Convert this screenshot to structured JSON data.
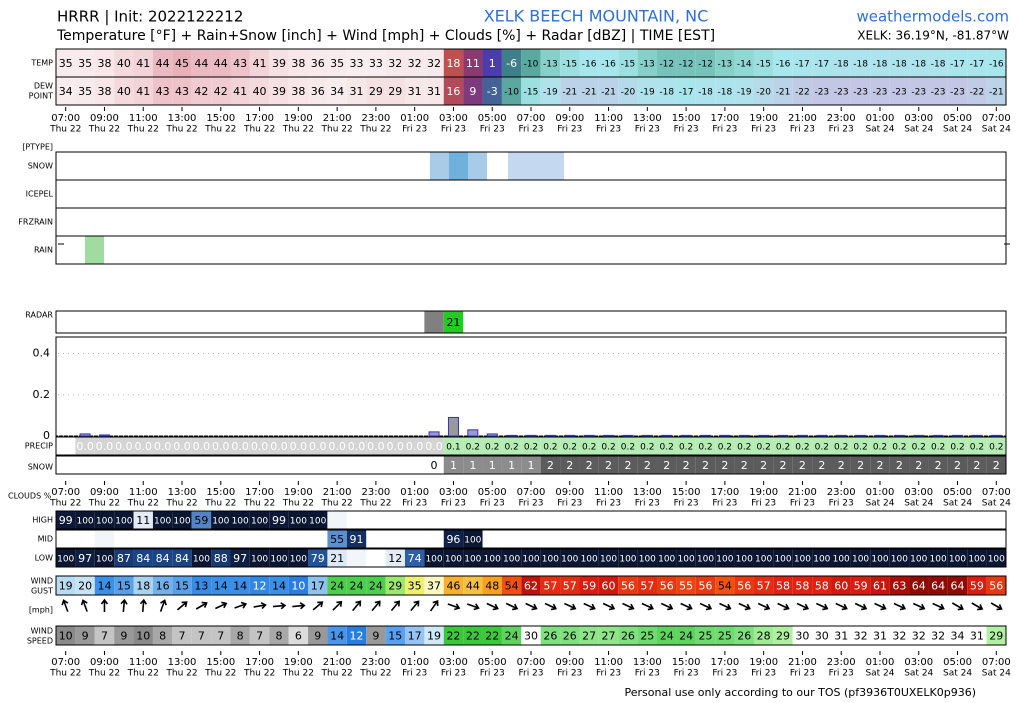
{
  "header": {
    "title": "HRRR | Init: 2022122212",
    "station": "XELK BEECH MOUNTAIN, NC",
    "site": "weathermodels.com",
    "subtitle": "Temperature [°F] + Rain+Snow [inch] + Wind [mph] + Clouds [%] + Radar [dBZ] | TIME [EST]",
    "location": "XELK: 36.19°N, -81.87°W"
  },
  "times": [
    "07:00",
    "09:00",
    "11:00",
    "13:00",
    "15:00",
    "17:00",
    "19:00",
    "21:00",
    "23:00",
    "01:00",
    "03:00",
    "05:00",
    "07:00",
    "09:00",
    "11:00",
    "13:00",
    "15:00",
    "17:00",
    "19:00",
    "21:00",
    "23:00",
    "01:00",
    "03:00",
    "05:00",
    "07:00"
  ],
  "days": [
    "Thu 22",
    "Thu 22",
    "Thu 22",
    "Thu 22",
    "Thu 22",
    "Thu 22",
    "Thu 22",
    "Thu 22",
    "Thu 22",
    "Fri 23",
    "Fri 23",
    "Fri 23",
    "Fri 23",
    "Fri 23",
    "Fri 23",
    "Fri 23",
    "Fri 23",
    "Fri 23",
    "Fri 23",
    "Fri 23",
    "Fri 23",
    "Sat 24",
    "Sat 24",
    "Sat 24",
    "Sat 24"
  ],
  "temp": {
    "label": "TEMP",
    "values": [
      35,
      35,
      38,
      40,
      41,
      44,
      45,
      44,
      44,
      43,
      41,
      39,
      38,
      36,
      35,
      33,
      33,
      32,
      32,
      32,
      18,
      11,
      1,
      -6,
      -10,
      -13,
      -15,
      -16,
      -16,
      -15,
      -13,
      -12,
      -12,
      -12,
      -13,
      -14,
      -15,
      -16,
      -17,
      -17,
      -18,
      -18,
      -18,
      -18,
      -18,
      -18,
      -17,
      -17,
      -16
    ]
  },
  "dewpoint": {
    "label": [
      "DEW",
      "POINT"
    ],
    "values": [
      34,
      35,
      38,
      40,
      41,
      43,
      43,
      42,
      42,
      41,
      40,
      39,
      38,
      36,
      34,
      31,
      29,
      29,
      31,
      31,
      16,
      9,
      -3,
      -10,
      -15,
      -19,
      -21,
      -21,
      -21,
      -20,
      -19,
      -18,
      -17,
      -18,
      -18,
      -19,
      -20,
      -21,
      -22,
      -23,
      -23,
      -23,
      -23,
      -23,
      -23,
      -23,
      -23,
      -22,
      -21
    ]
  },
  "ptype": {
    "label": "[PTYPE]",
    "rows": [
      "SNOW",
      "ICEPEL",
      "FRZRAIN",
      "RAIN"
    ]
  },
  "radar": {
    "label": "RADAR",
    "values": [
      null,
      null,
      null,
      null,
      null,
      null,
      null,
      null,
      null,
      null,
      null,
      null,
      null,
      null,
      null,
      null,
      null,
      null,
      null,
      5,
      21,
      null,
      null,
      null,
      null,
      null,
      null,
      null,
      null,
      null,
      null,
      null,
      null,
      null,
      null,
      null,
      null,
      null,
      null,
      null,
      null,
      null,
      null,
      null,
      null,
      null,
      null,
      null,
      null
    ]
  },
  "precip_chart": {
    "ylim": [
      0,
      0.48
    ],
    "yticks": [
      0,
      0.2,
      0.4
    ],
    "grid": true,
    "values": [
      0,
      0.01,
      0.005,
      0,
      0,
      0,
      0,
      0,
      0,
      0,
      0,
      0,
      0,
      0,
      0,
      0,
      0,
      0,
      0,
      0.02,
      0.09,
      0.03,
      0.01,
      0.003,
      0.003,
      0.003,
      0.003,
      0.003,
      0.003,
      0.003,
      0.003,
      0.003,
      0.003,
      0.003,
      0.003,
      0.003,
      0.003,
      0.003,
      0.003,
      0.003,
      0.003,
      0.003,
      0.003,
      0.003,
      0.003,
      0.003,
      0.003,
      0.003,
      0.003
    ]
  },
  "precip_total": {
    "label": "PRECIP",
    "values": [
      null,
      0,
      0,
      0,
      0,
      0,
      0,
      0,
      0,
      0,
      0,
      0,
      0,
      0,
      0,
      0,
      0,
      0,
      0,
      0,
      0.1,
      0.2,
      0.2,
      0.2,
      0.2,
      0.2,
      0.2,
      0.2,
      0.2,
      0.2,
      0.2,
      0.2,
      0.2,
      0.2,
      0.2,
      0.2,
      0.2,
      0.2,
      0.2,
      0.2,
      0.2,
      0.2,
      0.2,
      0.2,
      0.2,
      0.2,
      0.2,
      0.2,
      0.2
    ],
    "value_labels": [
      null,
      "0.0",
      "0.0",
      "0.0",
      "0.0",
      "0.0",
      "0.0",
      "0.0",
      "0.0",
      "0.0",
      "0.0",
      "0.0",
      "0.0",
      "0.0",
      "0.0",
      "0.0",
      "0.0",
      "0.0",
      "0.0",
      "0.0",
      "0.1",
      "0.2",
      "0.2",
      "0.2",
      "0.2",
      "0.2",
      "0.2",
      "0.2",
      "0.2",
      "0.2",
      "0.2",
      "0.2",
      "0.2",
      "0.2",
      "0.2",
      "0.2",
      "0.2",
      "0.2",
      "0.2",
      "0.2",
      "0.2",
      "0.2",
      "0.2",
      "0.2",
      "0.2",
      "0.2",
      "0.2",
      "0.2",
      "0.2"
    ]
  },
  "snow_total": {
    "label": "SNOW",
    "values": [
      null,
      null,
      null,
      null,
      null,
      null,
      null,
      null,
      null,
      null,
      null,
      null,
      null,
      null,
      null,
      null,
      null,
      null,
      null,
      0,
      1,
      1,
      1,
      1,
      1,
      2,
      2,
      2,
      2,
      2,
      2,
      2,
      2,
      2,
      2,
      2,
      2,
      2,
      2,
      2,
      2,
      2,
      2,
      2,
      2,
      2,
      2,
      2,
      2
    ]
  },
  "clouds": {
    "label": "CLOUDS %",
    "high": {
      "label": "HIGH",
      "values": [
        99,
        100,
        100,
        100,
        11,
        100,
        100,
        59,
        100,
        100,
        100,
        99,
        100,
        100,
        5,
        null,
        null,
        null,
        null,
        null,
        null,
        null,
        null,
        null,
        null,
        null,
        null,
        null,
        null,
        null,
        null,
        null,
        null,
        null,
        null,
        null,
        null,
        null,
        null,
        null,
        null,
        null,
        null,
        null,
        null,
        null,
        null,
        null,
        null
      ]
    },
    "mid": {
      "label": "MID",
      "values": [
        null,
        null,
        5,
        null,
        null,
        null,
        null,
        null,
        null,
        null,
        null,
        null,
        null,
        null,
        55,
        91,
        null,
        null,
        null,
        null,
        96,
        100,
        null,
        null,
        null,
        null,
        null,
        null,
        null,
        null,
        null,
        null,
        null,
        null,
        null,
        null,
        null,
        null,
        null,
        null,
        null,
        null,
        null,
        null,
        null,
        null,
        null,
        null,
        null
      ]
    },
    "low": {
      "label": "LOW",
      "values": [
        100,
        97,
        100,
        87,
        84,
        84,
        84,
        100,
        88,
        97,
        100,
        100,
        100,
        79,
        21,
        5,
        null,
        12,
        74,
        100,
        100,
        100,
        100,
        100,
        100,
        100,
        100,
        100,
        100,
        100,
        100,
        100,
        100,
        100,
        100,
        100,
        100,
        100,
        100,
        100,
        100,
        100,
        100,
        100,
        100,
        100,
        100,
        100,
        100
      ]
    }
  },
  "wind_gust": {
    "label": [
      "WIND",
      "GUST"
    ],
    "values": [
      19,
      20,
      14,
      15,
      18,
      16,
      15,
      13,
      14,
      14,
      12,
      14,
      10,
      17,
      24,
      24,
      24,
      29,
      35,
      37,
      46,
      44,
      48,
      54,
      62,
      57,
      57,
      59,
      60,
      56,
      57,
      56,
      55,
      56,
      54,
      56,
      57,
      58,
      58,
      58,
      60,
      59,
      61,
      63,
      64,
      64,
      64,
      59,
      56
    ]
  },
  "wind_dir": {
    "label": "[mph]",
    "values": [
      340,
      340,
      0,
      5,
      5,
      20,
      50,
      60,
      65,
      70,
      80,
      85,
      85,
      50,
      45,
      40,
      40,
      40,
      40,
      35,
      110,
      110,
      115,
      115,
      115,
      115,
      115,
      115,
      115,
      115,
      115,
      115,
      115,
      115,
      115,
      115,
      115,
      115,
      115,
      115,
      115,
      115,
      115,
      115,
      115,
      115,
      120,
      120,
      120
    ]
  },
  "wind_speed": {
    "label": [
      "WIND",
      "SPEED"
    ],
    "values": [
      10,
      9,
      7,
      9,
      10,
      8,
      7,
      7,
      7,
      8,
      7,
      8,
      6,
      9,
      14,
      12,
      9,
      15,
      17,
      19,
      22,
      22,
      22,
      24,
      30,
      26,
      26,
      27,
      27,
      26,
      25,
      24,
      24,
      25,
      25,
      26,
      28,
      29,
      30,
      30,
      31,
      32,
      31,
      32,
      32,
      32,
      34,
      31,
      29
    ]
  },
  "footer": "Personal use only according to our TOS (pf3936T0UXELK0p936)"
}
